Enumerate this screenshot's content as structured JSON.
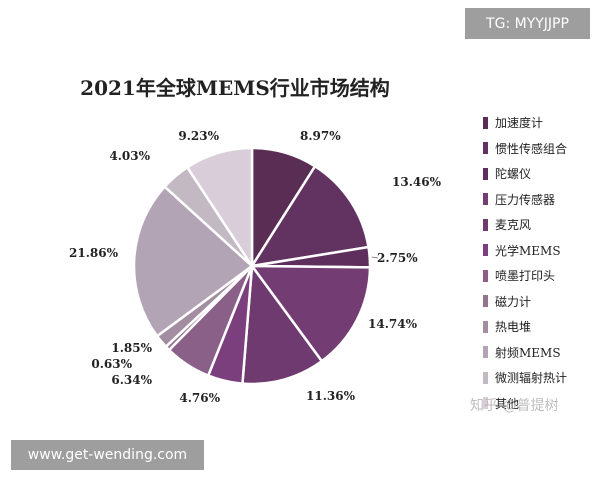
{
  "watermarks": {
    "top_right": "TG: MYYJJPP",
    "bottom_left": "www.get-wending.com",
    "zhihu": "知乎 @普提树"
  },
  "chart_data": {
    "type": "pie",
    "title": "2021年全球MEMS行业市场结构",
    "legend_position": "right",
    "slices": [
      {
        "label": "加速度计",
        "value": 8.97,
        "text": "8.97%",
        "color": "#5a2d55"
      },
      {
        "label": "惯性传感组合",
        "value": 13.46,
        "text": "13.46%",
        "color": "#623260"
      },
      {
        "label": "陀螺仪",
        "value": 2.75,
        "text": "2.75%",
        "color": "#5e2f5c"
      },
      {
        "label": "压力传感器",
        "value": 14.74,
        "text": "14.74%",
        "color": "#733d74"
      },
      {
        "label": "麦克风",
        "value": 11.36,
        "text": "11.36%",
        "color": "#6f3a70"
      },
      {
        "label": "光学MEMS",
        "value": 4.76,
        "text": "4.76%",
        "color": "#7c3f7d"
      },
      {
        "label": "喷墨打印头",
        "value": 6.34,
        "text": "6.34%",
        "color": "#8a6089"
      },
      {
        "label": "磁力计",
        "value": 0.63,
        "text": "0.63%",
        "color": "#94748f"
      },
      {
        "label": "热电堆",
        "value": 1.85,
        "text": "1.85%",
        "color": "#a38ea1"
      },
      {
        "label": "射频MEMS",
        "value": 21.86,
        "text": "21.86%",
        "color": "#b3a4b5"
      },
      {
        "label": "微测辐射热计",
        "value": 4.03,
        "text": "4.03%",
        "color": "#c3b9c3"
      },
      {
        "label": "其他",
        "value": 9.23,
        "text": "9.23%",
        "color": "#d8cdd8"
      }
    ]
  }
}
